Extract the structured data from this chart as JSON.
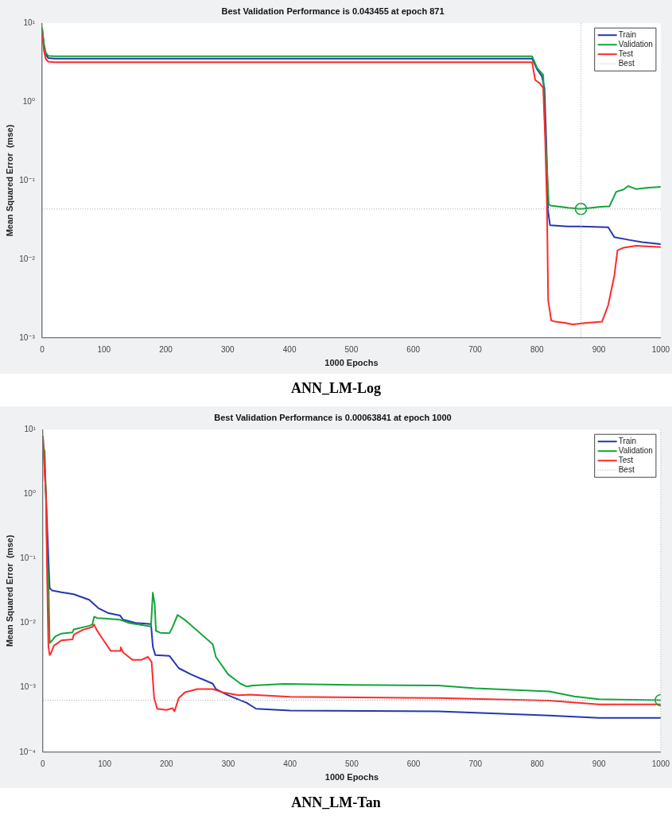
{
  "chart_data": [
    {
      "type": "line",
      "title": "Best Validation Performance is 0.043455 at epoch 871",
      "xlabel": "1000 Epochs",
      "ylabel": "Mean Squared Error  (mse)",
      "annotations": [
        "ANN_LM-Log"
      ],
      "log": "y",
      "grid": false,
      "legend": "top right",
      "marker": "none",
      "line_style": "solid",
      "xlim": [
        0,
        1000
      ],
      "xticks": [
        0,
        100,
        200,
        300,
        400,
        500,
        600,
        700,
        800,
        900,
        1000
      ],
      "ylim": [
        0.001,
        10
      ],
      "yticks": [
        {
          "value": 10,
          "label": "10¹"
        },
        {
          "value": 1,
          "label": "10⁰"
        },
        {
          "value": 0.1,
          "label": "10⁻¹"
        },
        {
          "value": 0.01,
          "label": "10⁻²"
        },
        {
          "value": 0.001,
          "label": "10⁻³"
        }
      ],
      "ref_lines": [
        {
          "axis": "y",
          "value": 0.043455,
          "label": "Best",
          "color": "#a8a8a8",
          "line_style": "dotted"
        },
        {
          "axis": "x",
          "value": 871,
          "color": "#a8a8a8",
          "line_style": "dotted"
        }
      ],
      "series": [
        {
          "name": "Train",
          "color": "#2437b0",
          "x": [
            0,
            3,
            6,
            10,
            20,
            792,
            800,
            808,
            812,
            815,
            818,
            821,
            850,
            870,
            915,
            925,
            950,
            970,
            1000
          ],
          "values": [
            8.5,
            5,
            4,
            3.6,
            3.55,
            3.55,
            2.6,
            2.1,
            1.5,
            0.3,
            0.04,
            0.027,
            0.026,
            0.026,
            0.0255,
            0.019,
            0.0175,
            0.0165,
            0.0155
          ]
        },
        {
          "name": "Validation",
          "color": "#12a53a",
          "x": [
            0,
            3,
            6,
            10,
            20,
            792,
            800,
            810,
            813,
            816,
            819,
            822,
            850,
            871,
            900,
            917,
            928,
            940,
            947,
            960,
            980,
            1000
          ],
          "values": [
            8.8,
            5.5,
            4.2,
            3.85,
            3.8,
            3.8,
            2.7,
            2.2,
            0.44,
            0.15,
            0.05,
            0.048,
            0.045,
            0.043455,
            0.046,
            0.047,
            0.072,
            0.077,
            0.085,
            0.078,
            0.081,
            0.083
          ]
        },
        {
          "name": "Test",
          "color": "#ff2a2a",
          "x": [
            0,
            3,
            6,
            10,
            20,
            792,
            797,
            805,
            810,
            813,
            816,
            818,
            823,
            830,
            845,
            858,
            880,
            905,
            915,
            925,
            930,
            940,
            960,
            1000
          ],
          "values": [
            7.4,
            4.5,
            3.5,
            3.25,
            3.2,
            3.2,
            1.9,
            1.7,
            1.5,
            0.37,
            0.05,
            0.003,
            0.00166,
            0.0016,
            0.00155,
            0.00148,
            0.00155,
            0.0016,
            0.0026,
            0.0062,
            0.0129,
            0.014,
            0.0148,
            0.0142
          ]
        },
        {
          "type": "scatter",
          "marker": "circle",
          "color": "#12a53a",
          "x": [
            871
          ],
          "values": [
            0.043455
          ]
        }
      ]
    },
    {
      "type": "line",
      "title": "Best Validation Performance is 0.00063841 at epoch 1000",
      "xlabel": "1000 Epochs",
      "ylabel": "Mean Squared Error  (mse)",
      "annotations": [
        "ANN_LM-Tan"
      ],
      "log": "y",
      "grid": false,
      "legend": "top right",
      "marker": "none",
      "line_style": "solid",
      "xlim": [
        0,
        1000
      ],
      "xticks": [
        0,
        100,
        200,
        300,
        400,
        500,
        600,
        700,
        800,
        900,
        1000
      ],
      "ylim": [
        0.0001,
        10
      ],
      "yticks": [
        {
          "value": 10,
          "label": "10¹"
        },
        {
          "value": 1,
          "label": "10⁰"
        },
        {
          "value": 0.1,
          "label": "10⁻¹"
        },
        {
          "value": 0.01,
          "label": "10⁻²"
        },
        {
          "value": 0.001,
          "label": "10⁻³"
        },
        {
          "value": 0.0001,
          "label": "10⁻⁴"
        }
      ],
      "ref_lines": [
        {
          "axis": "y",
          "value": 0.00063841,
          "label": "Best",
          "color": "#a8a8a8",
          "line_style": "dotted"
        },
        {
          "axis": "x",
          "value": 1000,
          "color": "#a8a8a8",
          "line_style": "dotted"
        }
      ],
      "series": [
        {
          "name": "Train",
          "color": "#2437b0",
          "x": [
            0,
            5,
            9,
            11,
            15,
            30,
            50,
            75,
            90,
            105,
            125,
            130,
            150,
            175,
            178,
            182,
            205,
            220,
            240,
            275,
            280,
            300,
            330,
            345,
            400,
            640,
            820,
            900,
            1000
          ],
          "values": [
            8,
            1,
            0.1,
            0.035,
            0.032,
            0.03,
            0.028,
            0.023,
            0.017,
            0.0144,
            0.0131,
            0.0113,
            0.0101,
            0.0097,
            0.0043,
            0.0032,
            0.0031,
            0.002,
            0.0016,
            0.00115,
            0.00095,
            0.00076,
            0.00058,
            0.00047,
            0.00044,
            0.00043,
            0.00037,
            0.00034,
            0.00034
          ]
        },
        {
          "name": "Validation",
          "color": "#12a53a",
          "x": [
            0,
            3,
            5,
            7,
            9,
            11,
            15,
            20,
            30,
            48,
            50,
            75,
            80,
            83,
            88,
            100,
            125,
            140,
            175,
            178,
            181,
            183,
            190,
            205,
            210,
            218,
            230,
            275,
            280,
            300,
            320,
            330,
            340,
            390,
            500,
            640,
            700,
            820,
            860,
            900,
            1000
          ],
          "values": [
            6,
            4.5,
            0.95,
            0.1,
            0.049,
            0.0049,
            0.0054,
            0.0062,
            0.0069,
            0.0072,
            0.008,
            0.0091,
            0.0095,
            0.0126,
            0.012,
            0.0118,
            0.0113,
            0.01,
            0.0089,
            0.0296,
            0.0196,
            0.0076,
            0.0071,
            0.007,
            0.0087,
            0.0134,
            0.0112,
            0.0047,
            0.003,
            0.0016,
            0.00115,
            0.00104,
            0.00108,
            0.00114,
            0.0011,
            0.00108,
            0.00098,
            0.00087,
            0.00073,
            0.00066,
            0.00063841
          ]
        },
        {
          "name": "Test",
          "color": "#ff2a2a",
          "x": [
            0,
            5,
            7,
            9,
            11,
            13,
            18,
            20,
            30,
            48,
            50,
            65,
            80,
            83,
            87,
            95,
            110,
            125,
            126,
            130,
            145,
            160,
            170,
            176,
            180,
            185,
            200,
            210,
            213,
            220,
            230,
            250,
            275,
            290,
            317,
            335,
            400,
            640,
            820,
            900,
            1000
          ],
          "values": [
            8,
            0.95,
            0.047,
            0.0043,
            0.0032,
            0.0034,
            0.0045,
            0.0046,
            0.0054,
            0.0056,
            0.0066,
            0.0079,
            0.0087,
            0.0095,
            0.0079,
            0.006,
            0.0037,
            0.0037,
            0.0042,
            0.0035,
            0.0027,
            0.0027,
            0.003,
            0.0025,
            0.0007,
            0.00047,
            0.00045,
            0.00048,
            0.00043,
            0.00069,
            0.00085,
            0.00095,
            0.00095,
            0.00085,
            0.00076,
            0.00078,
            0.00072,
            0.00069,
            0.00063,
            0.00055,
            0.00055
          ]
        },
        {
          "type": "scatter",
          "marker": "circle",
          "color": "#12a53a",
          "x": [
            1000
          ],
          "values": [
            0.00063841
          ]
        }
      ]
    }
  ]
}
